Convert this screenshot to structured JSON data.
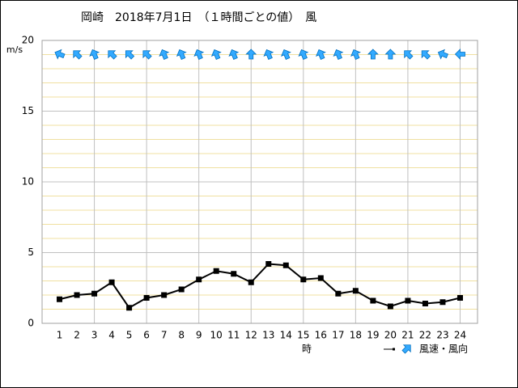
{
  "chart_data": {
    "type": "line",
    "title": "岡崎　2018年7月1日　（１時間ごとの値）　風",
    "y_label": "m/s",
    "x_label": "時",
    "x": [
      1,
      2,
      3,
      4,
      5,
      6,
      7,
      8,
      9,
      10,
      11,
      12,
      13,
      14,
      15,
      16,
      17,
      18,
      19,
      20,
      21,
      22,
      23,
      24
    ],
    "series": [
      {
        "name": "風速・風向",
        "color": "#000000",
        "arrow_color": "#33aaff",
        "values": [
          1.7,
          2.0,
          2.1,
          2.9,
          1.1,
          1.8,
          2.0,
          2.4,
          3.1,
          3.7,
          3.5,
          2.9,
          4.2,
          4.1,
          3.1,
          3.2,
          2.1,
          2.3,
          1.6,
          1.2,
          1.6,
          1.4,
          1.5,
          1.8
        ],
        "directions": [
          -67.5,
          -45,
          -22.5,
          -45,
          -45,
          -45,
          -22.5,
          -22.5,
          -22.5,
          -22.5,
          -22.5,
          0,
          -22.5,
          -22.5,
          -22.5,
          -22.5,
          -22.5,
          -22.5,
          0,
          0,
          -45,
          -45,
          -67.5,
          -90
        ]
      }
    ],
    "xlim": [
      0,
      25
    ],
    "ylim": [
      0,
      20
    ],
    "yticks": [
      0,
      5,
      10,
      15,
      20
    ],
    "x_grid_every": 3,
    "y_minor_step": 1,
    "grid": true
  }
}
